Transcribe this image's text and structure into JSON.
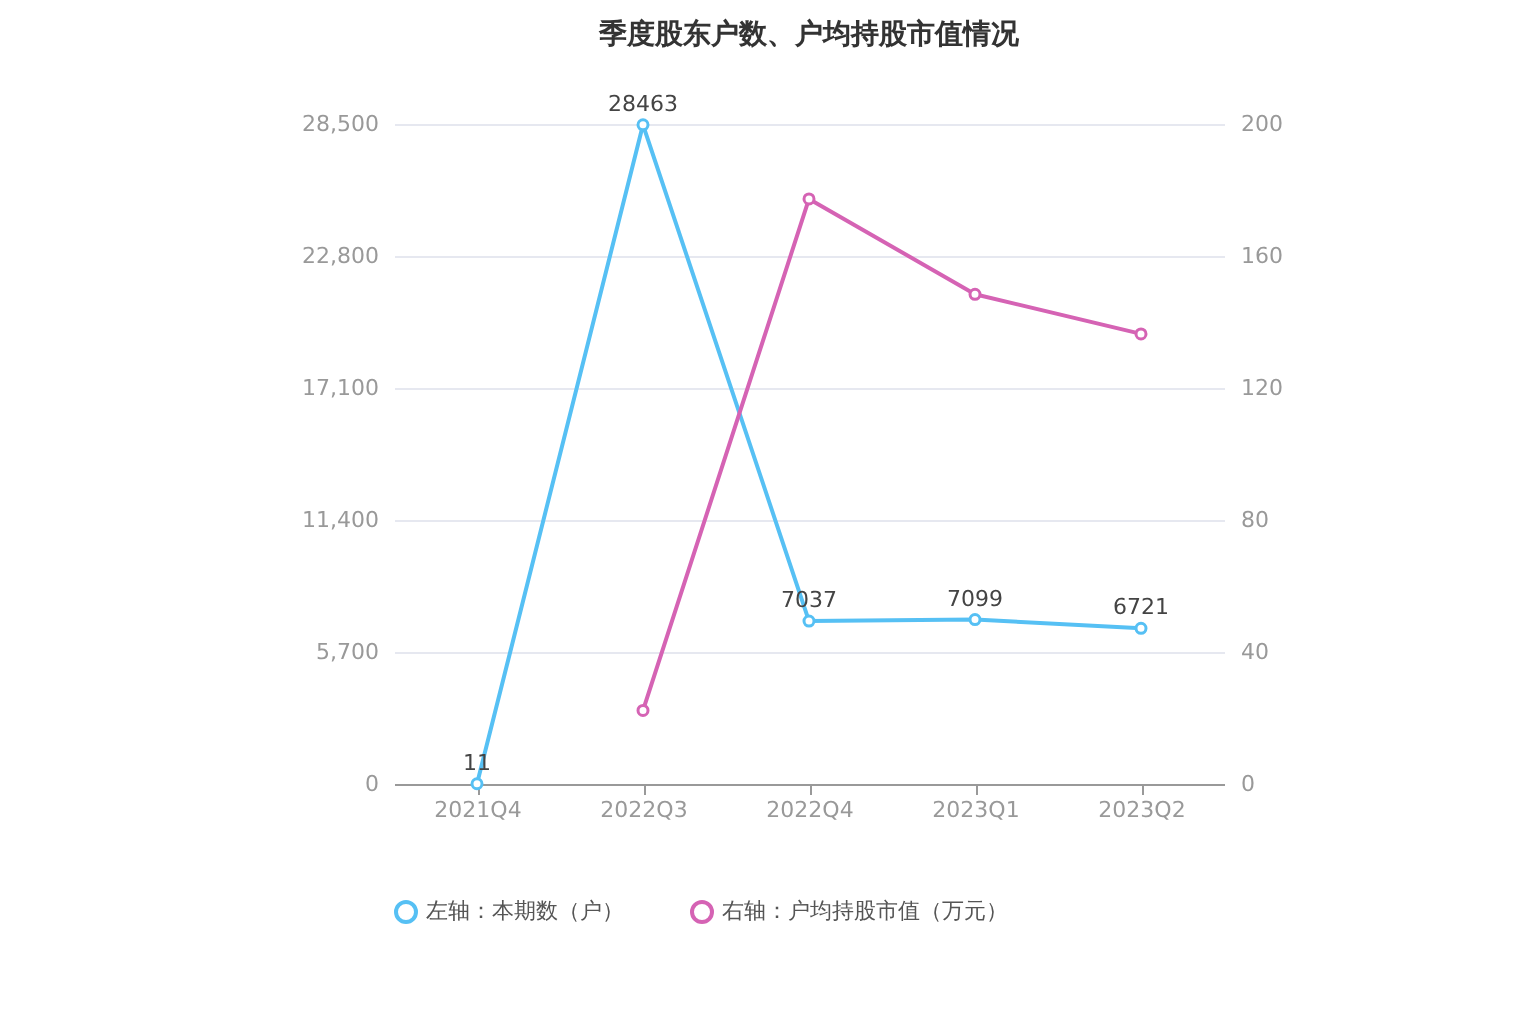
{
  "chart_data": {
    "type": "line",
    "title": "季度股东户数、户均持股市值情况",
    "categories": [
      "2021Q4",
      "2022Q3",
      "2022Q4",
      "2023Q1",
      "2023Q2"
    ],
    "series": [
      {
        "name": "左轴：本期数（户）",
        "color": "#56c0f4",
        "values": [
          11,
          28463,
          7037,
          7099,
          6721
        ],
        "value_labels": [
          "11",
          "28463",
          "7037",
          "7099",
          "6721"
        ]
      },
      {
        "name": "右轴：户均持股市值（万元）",
        "color": "#d563b4",
        "axis": "y2",
        "values": [
          null,
          22.3,
          177.3,
          148.4,
          136.4
        ]
      }
    ],
    "ylim": [
      0,
      28500
    ],
    "yticks": [
      0,
      {
        "value": 5700,
        "label": "5,700"
      },
      {
        "value": 11400,
        "label": "11,400"
      },
      {
        "value": 17100,
        "label": "17,100"
      },
      {
        "value": 22800,
        "label": "22,800"
      },
      {
        "value": 28500,
        "label": "28,500"
      }
    ],
    "y2lim": [
      0,
      200
    ],
    "y2ticks": [
      0,
      40,
      80,
      120,
      160,
      200
    ],
    "grid": "y",
    "legend": "bottom",
    "marker": "circle",
    "line_style": "solid"
  }
}
